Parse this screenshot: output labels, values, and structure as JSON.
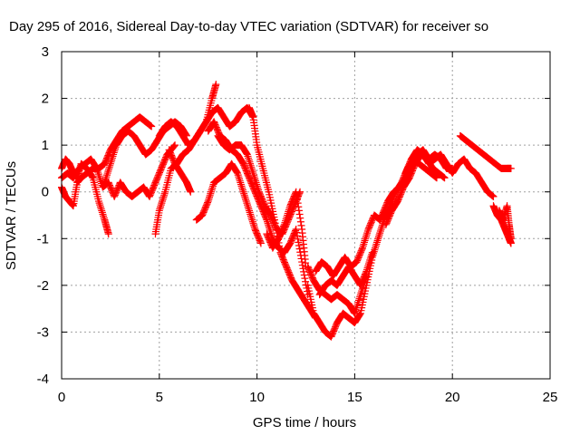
{
  "chart_data": {
    "type": "scatter",
    "title": "Day 295 of 2016, Sidereal Day-to-day VTEC variation (SDTVAR) for receiver so",
    "xlabel": "GPS time / hours",
    "ylabel": "SDTVAR / TECUs",
    "xlim": [
      0,
      25
    ],
    "ylim": [
      -4,
      3
    ],
    "xticks": [
      "0",
      "5",
      "10",
      "15",
      "20",
      "25"
    ],
    "yticks": [
      "-4",
      "-3",
      "-2",
      "-1",
      "0",
      "1",
      "2",
      "3"
    ],
    "grid": true,
    "marker": "plus",
    "series_color": "#ff0000",
    "series": [
      {
        "x": [
          0.0,
          0.2,
          0.4,
          0.6,
          0.8,
          1.0,
          1.3,
          1.6,
          1.9,
          2.2,
          2.4
        ],
        "y": [
          0.5,
          0.7,
          0.6,
          0.4,
          0.3,
          0.6,
          0.5,
          0.3,
          -0.2,
          -0.6,
          -0.9
        ]
      },
      {
        "x": [
          0.0,
          0.2,
          0.4,
          0.6,
          0.8,
          1.0,
          1.3,
          1.6,
          1.9,
          2.2,
          2.5,
          2.8,
          3.1,
          3.4,
          3.7,
          4.0,
          4.3,
          4.6
        ],
        "y": [
          0.1,
          -0.1,
          -0.2,
          -0.3,
          0.2,
          0.3,
          0.4,
          0.5,
          0.5,
          0.6,
          0.9,
          1.1,
          1.3,
          1.4,
          1.5,
          1.6,
          1.5,
          1.4
        ]
      },
      {
        "x": [
          0.0,
          0.3,
          0.6,
          0.9,
          1.2,
          1.5,
          1.8,
          2.1,
          2.4,
          2.7,
          3.0,
          3.3,
          3.6,
          3.9,
          4.2,
          4.5,
          4.8,
          5.1,
          5.4,
          5.8
        ],
        "y": [
          0.3,
          0.4,
          0.3,
          0.5,
          0.6,
          0.7,
          0.5,
          0.1,
          0.2,
          -0.1,
          0.2,
          0.0,
          -0.1,
          0.0,
          0.1,
          -0.1,
          0.2,
          0.5,
          0.8,
          1.0
        ]
      },
      {
        "x": [
          2.2,
          2.5,
          2.8,
          3.1,
          3.4,
          3.7,
          4.0,
          4.3,
          4.6,
          4.9,
          5.2,
          5.5,
          5.8,
          6.1,
          6.4
        ],
        "y": [
          0.2,
          0.6,
          1.0,
          1.2,
          1.3,
          1.2,
          1.0,
          0.8,
          0.9,
          1.1,
          1.3,
          1.4,
          1.5,
          1.4,
          1.2
        ]
      },
      {
        "x": [
          4.8,
          5.0,
          5.3,
          5.6,
          5.9,
          6.2,
          6.5,
          6.8,
          7.1,
          7.4,
          7.7,
          8.0,
          8.3,
          8.6,
          8.9,
          9.2,
          9.5,
          9.8
        ],
        "y": [
          -0.9,
          -0.4,
          0.0,
          0.5,
          0.6,
          0.8,
          0.9,
          1.1,
          1.3,
          1.5,
          1.7,
          1.8,
          1.6,
          1.4,
          1.5,
          1.7,
          1.8,
          1.6
        ]
      },
      {
        "x": [
          5.0,
          5.3,
          5.6,
          5.9,
          6.2,
          6.5,
          6.8,
          7.1,
          7.4,
          7.7,
          7.9
        ],
        "y": [
          1.2,
          1.4,
          1.5,
          1.4,
          1.2,
          1.0,
          1.1,
          1.3,
          1.5,
          2.0,
          2.3
        ]
      },
      {
        "x": [
          5.5,
          5.8,
          6.1,
          6.4,
          6.6
        ],
        "y": [
          0.9,
          0.6,
          0.4,
          0.2,
          0.0
        ]
      },
      {
        "x": [
          6.9,
          7.2,
          7.5,
          7.8,
          8.1,
          8.4,
          8.7,
          9.0,
          9.3,
          9.6,
          9.9,
          10.2
        ],
        "y": [
          -0.6,
          -0.5,
          -0.2,
          0.2,
          0.3,
          0.4,
          0.6,
          0.4,
          0.0,
          -0.4,
          -0.8,
          -1.1
        ]
      },
      {
        "x": [
          7.5,
          7.8,
          8.1,
          8.4,
          8.7,
          9.0,
          9.3,
          9.6,
          9.9,
          10.2,
          10.5,
          10.8,
          11.1,
          11.4,
          11.7,
          12.0,
          12.3,
          12.6
        ],
        "y": [
          1.3,
          1.5,
          1.2,
          1.1,
          0.9,
          0.8,
          0.6,
          0.3,
          0.0,
          -0.3,
          -0.6,
          -1.0,
          -1.2,
          -1.3,
          -1.1,
          -0.8,
          -1.5,
          -2.2
        ]
      },
      {
        "x": [
          8.0,
          8.3,
          8.6,
          8.9,
          9.2,
          9.5,
          9.8,
          10.1,
          10.4,
          10.7,
          11.0,
          11.3,
          11.6,
          11.9,
          12.2
        ],
        "y": [
          1.2,
          1.0,
          0.9,
          1.0,
          1.0,
          0.8,
          0.4,
          0.0,
          -0.3,
          -0.5,
          -0.8,
          -0.9,
          -0.6,
          -0.3,
          0.0
        ]
      },
      {
        "x": [
          9.6,
          9.8,
          10.0,
          10.3,
          10.6,
          10.9,
          11.2,
          11.5,
          11.8,
          12.1,
          12.4,
          12.7,
          13.0
        ],
        "y": [
          1.8,
          1.6,
          1.0,
          0.5,
          0.0,
          -0.6,
          -1.3,
          -1.6,
          -1.9,
          -2.1,
          -2.3,
          -2.5,
          -2.7
        ]
      },
      {
        "x": [
          10.5,
          10.8,
          11.1,
          11.4,
          11.7,
          12.0,
          12.3,
          12.5
        ],
        "y": [
          -0.9,
          -1.2,
          -1.0,
          -0.7,
          -0.3,
          0.0,
          -0.8,
          -1.6
        ]
      },
      {
        "x": [
          12.6,
          12.9,
          13.2,
          13.5,
          13.8,
          14.1,
          14.4,
          14.7,
          15.0,
          15.3,
          15.6,
          15.9,
          16.2,
          16.5,
          16.8
        ],
        "y": [
          -2.0,
          -2.6,
          -2.8,
          -3.0,
          -3.1,
          -2.8,
          -2.6,
          -2.7,
          -2.8,
          -2.6,
          -2.0,
          -1.4,
          -1.0,
          -0.6,
          -0.3
        ]
      },
      {
        "x": [
          12.6,
          12.9,
          13.2,
          13.5,
          13.8,
          14.1,
          14.4,
          14.7,
          15.0,
          15.3,
          15.6
        ],
        "y": [
          -1.6,
          -1.9,
          -2.1,
          -2.2,
          -2.3,
          -2.2,
          -2.3,
          -2.4,
          -2.6,
          -2.2,
          -1.8
        ]
      },
      {
        "x": [
          13.0,
          13.3,
          13.6,
          13.9,
          14.2,
          14.5,
          14.8,
          15.1,
          15.4,
          15.7,
          16.0,
          16.3,
          16.6
        ],
        "y": [
          -1.7,
          -1.5,
          -1.6,
          -1.8,
          -1.6,
          -1.4,
          -1.6,
          -1.5,
          -1.2,
          -0.8,
          -0.5,
          -0.6,
          -0.4
        ]
      },
      {
        "x": [
          13.2,
          13.5,
          13.8,
          14.1,
          14.4,
          14.7,
          15.0,
          15.3,
          15.6,
          15.9
        ],
        "y": [
          -2.2,
          -2.0,
          -1.9,
          -2.0,
          -1.8,
          -1.6,
          -1.8,
          -2.0,
          -1.7,
          -1.3
        ]
      },
      {
        "x": [
          16.4,
          16.7,
          17.0,
          17.3,
          17.6,
          17.9,
          18.2,
          18.5,
          18.8,
          19.1,
          19.4,
          19.7,
          20.0
        ],
        "y": [
          -0.5,
          -0.2,
          0.0,
          0.1,
          0.3,
          0.5,
          0.8,
          0.9,
          0.7,
          0.8,
          0.7,
          0.5,
          0.5
        ]
      },
      {
        "x": [
          16.6,
          16.9,
          17.2,
          17.5,
          17.8,
          18.1,
          18.4,
          18.7,
          19.0,
          19.3,
          19.6
        ],
        "y": [
          -0.7,
          -0.4,
          -0.2,
          0.1,
          0.3,
          0.6,
          0.8,
          0.7,
          0.5,
          0.4,
          0.3
        ]
      },
      {
        "x": [
          16.8,
          17.1,
          17.4,
          17.7,
          18.0,
          18.3,
          18.6,
          18.9,
          19.2
        ],
        "y": [
          -0.3,
          0.0,
          0.2,
          0.5,
          0.7,
          0.6,
          0.5,
          0.4,
          0.3
        ]
      },
      {
        "x": [
          17.6,
          17.9,
          18.2,
          18.5,
          18.8,
          19.1,
          19.4,
          19.7,
          20.0,
          20.3,
          20.6,
          20.9,
          21.2,
          21.5,
          21.8,
          22.1
        ],
        "y": [
          0.4,
          0.7,
          0.9,
          0.8,
          0.6,
          0.7,
          0.8,
          0.6,
          0.4,
          0.6,
          0.7,
          0.5,
          0.4,
          0.2,
          0.0,
          -0.1
        ]
      },
      {
        "x": [
          20.4,
          20.7,
          21.0,
          21.3,
          21.6,
          21.9,
          22.2,
          22.5,
          22.8,
          23.0
        ],
        "y": [
          1.2,
          1.1,
          1.0,
          0.9,
          0.8,
          0.7,
          0.6,
          0.5,
          0.5,
          0.5
        ]
      },
      {
        "x": [
          22.1,
          22.3,
          22.5,
          22.7,
          22.9,
          23.0
        ],
        "y": [
          -0.3,
          -0.5,
          -0.6,
          -0.8,
          -1.0,
          -1.1
        ]
      },
      {
        "x": [
          22.4,
          22.6,
          22.8,
          22.9,
          23.0
        ],
        "y": [
          -0.4,
          -0.6,
          -0.3,
          -0.7,
          -1.0
        ]
      }
    ]
  }
}
